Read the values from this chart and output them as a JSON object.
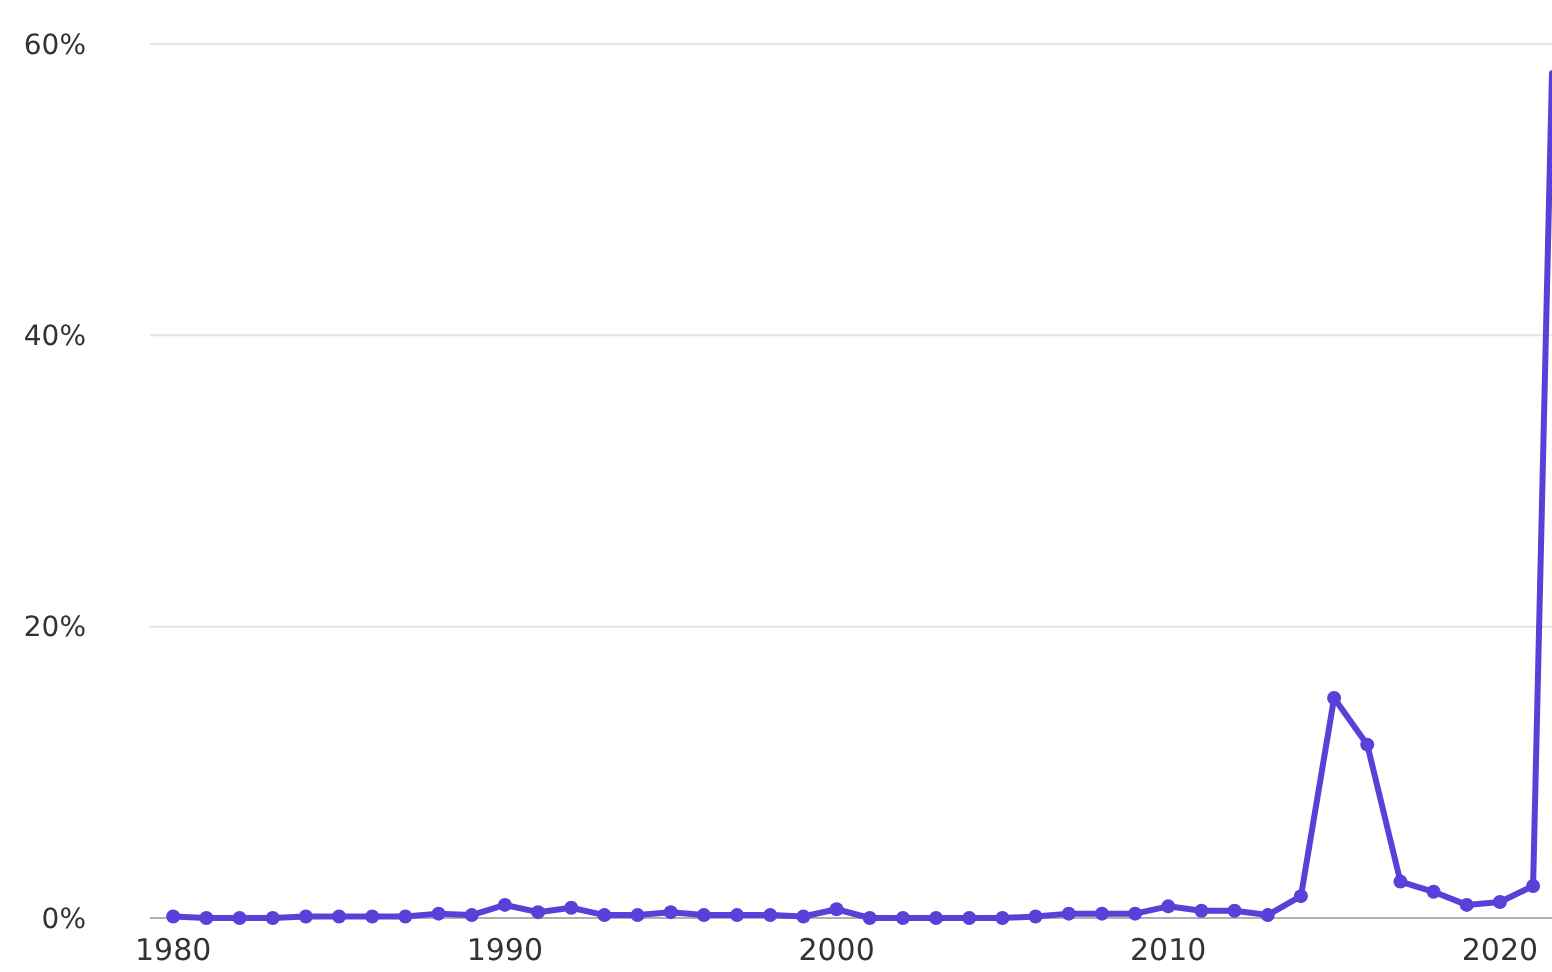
{
  "chart_data": {
    "type": "line",
    "x": [
      1980,
      1981,
      1982,
      1983,
      1984,
      1985,
      1986,
      1987,
      1988,
      1989,
      1990,
      1991,
      1992,
      1993,
      1994,
      1995,
      1996,
      1997,
      1998,
      1999,
      2000,
      2001,
      2002,
      2003,
      2004,
      2005,
      2006,
      2007,
      2008,
      2009,
      2010,
      2011,
      2012,
      2013,
      2014,
      2015,
      2016,
      2017,
      2018,
      2019,
      2020,
      2021
    ],
    "series": [
      {
        "color": "#5a3fd8",
        "values": [
          0.1,
          0,
          0,
          0,
          0.1,
          0.1,
          0.1,
          0.1,
          0.3,
          0.2,
          0.9,
          0.4,
          0.7,
          0.2,
          0.2,
          0.4,
          0.2,
          0.2,
          0.2,
          0.1,
          0.6,
          0,
          0,
          0,
          0,
          0,
          0.1,
          0.3,
          0.3,
          0.3,
          0.8,
          0.5,
          0.5,
          0.2,
          1.5,
          15.1,
          11.9,
          2.5,
          1.8,
          0.9,
          1.1,
          2.2
        ],
        "marker": "circle"
      },
      {
        "color": "#5a3fd8",
        "x": [
          2021,
          2021.57
        ],
        "values": [
          2.2,
          58
        ],
        "marker": "none"
      }
    ],
    "xlim": [
      1979.3,
      2021.57
    ],
    "xticks": [
      1980,
      1990,
      2000,
      2010,
      2020
    ],
    "ylim": [
      0,
      60
    ],
    "yticks": [
      {
        "value": 0,
        "label": "0%"
      },
      {
        "value": 20,
        "label": "20%"
      },
      {
        "value": 40,
        "label": "40%"
      },
      {
        "value": 60,
        "label": "60%"
      }
    ],
    "grid": "y",
    "line_style": "solid"
  }
}
